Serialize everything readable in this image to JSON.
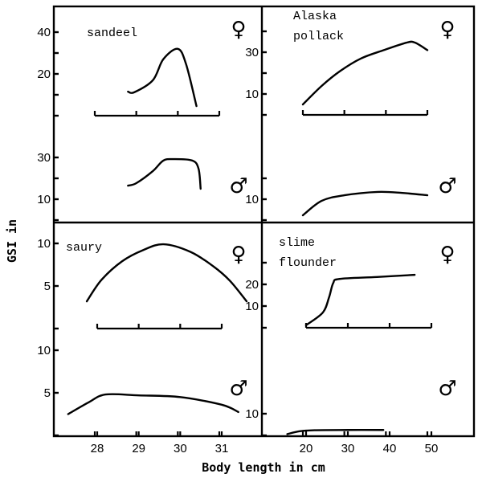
{
  "chart_data": {
    "type": "line",
    "ylabel": "GSI in",
    "xlabel": "Body length in cm",
    "panels": [
      {
        "id": "sandeel",
        "title_lines": [
          "sandeel"
        ],
        "x_ticks": [
          28,
          29,
          30,
          31
        ],
        "xlim": [
          28,
          31
        ],
        "female": {
          "symbol": "♀",
          "y_ticks": [
            10,
            20,
            30,
            40
          ],
          "y_tick_labels": [
            "",
            "20",
            "",
            "40"
          ],
          "x": [
            28.8,
            28.95,
            29.4,
            29.65,
            30.0,
            30.2,
            30.45
          ],
          "y": [
            11.5,
            11.2,
            17,
            27,
            32,
            24.6,
            4.6
          ]
        },
        "male": {
          "symbol": "♂",
          "y_ticks": [
            10,
            20,
            30
          ],
          "y_tick_labels": [
            "10",
            "",
            "30"
          ],
          "x": [
            28.8,
            29.0,
            29.4,
            29.65,
            29.9,
            30.35,
            30.5,
            30.55
          ],
          "y": [
            16.5,
            17.7,
            23.5,
            28.5,
            29.2,
            28.5,
            24.6,
            15
          ]
        }
      },
      {
        "id": "alaska-pollack",
        "title_lines": [
          "Alaska",
          "pollack"
        ],
        "x_ticks": [
          20,
          30,
          40,
          50
        ],
        "xlim": [
          20,
          50
        ],
        "female": {
          "symbol": "♀",
          "y_ticks": [
            10,
            20,
            30,
            40
          ],
          "y_tick_labels": [
            "10",
            "",
            "30",
            ""
          ],
          "x": [
            20,
            24.5,
            29,
            34,
            39.5,
            45,
            47,
            50
          ],
          "y": [
            5,
            13.8,
            21,
            27,
            31,
            34.6,
            34.6,
            31
          ]
        },
        "male": {
          "symbol": "♂",
          "y_ticks": [
            10,
            20
          ],
          "y_tick_labels": [
            "10",
            ""
          ],
          "x": [
            20,
            24.5,
            30,
            38,
            44,
            50
          ],
          "y": [
            2.3,
            9.2,
            11.9,
            13.5,
            13,
            11.9
          ]
        }
      },
      {
        "id": "saury",
        "title_lines": [
          "saury"
        ],
        "x_ticks": [
          28,
          29,
          30,
          31
        ],
        "x_tick_labels": [
          "28",
          "29",
          "30",
          "31"
        ],
        "xlim": [
          28,
          31
        ],
        "female": {
          "symbol": "♀",
          "y_ticks": [
            5,
            10
          ],
          "y_tick_labels": [
            "5",
            "10"
          ],
          "x": [
            27.75,
            28.1,
            28.6,
            29.1,
            29.6,
            30.25,
            30.8,
            31.2,
            31.6
          ],
          "y": [
            3.2,
            5.7,
            7.9,
            9.2,
            9.9,
            9.0,
            7.3,
            5.6,
            3.2
          ]
        },
        "male": {
          "symbol": "♂",
          "y_ticks": [
            5,
            10
          ],
          "y_tick_labels": [
            "5",
            "10"
          ],
          "x": [
            27.3,
            27.8,
            28.2,
            29,
            30,
            31,
            31.4
          ],
          "y": [
            2.5,
            3.9,
            4.8,
            4.7,
            4.5,
            3.6,
            2.75
          ]
        }
      },
      {
        "id": "slime-flounder",
        "title_lines": [
          "slime",
          "flounder"
        ],
        "x_ticks": [
          20,
          30,
          40,
          50
        ],
        "x_tick_labels": [
          "20",
          "30",
          "40",
          "50"
        ],
        "xlim": [
          20,
          50
        ],
        "female": {
          "symbol": "♀",
          "y_ticks": [
            10,
            20,
            30
          ],
          "y_tick_labels": [
            "10",
            "20",
            ""
          ],
          "x": [
            20,
            24,
            25.5,
            26.5,
            28,
            37,
            46
          ],
          "y": [
            1.2,
            7,
            14,
            20.6,
            22.5,
            23.4,
            24.4
          ]
        },
        "male": {
          "symbol": "♂",
          "y_ticks": [
            10
          ],
          "y_tick_labels": [
            "10"
          ],
          "x": [
            15.5,
            18.5,
            22,
            30,
            38.5
          ],
          "y": [
            0.6,
            1.9,
            2.4,
            2.5,
            2.5
          ]
        }
      }
    ]
  }
}
